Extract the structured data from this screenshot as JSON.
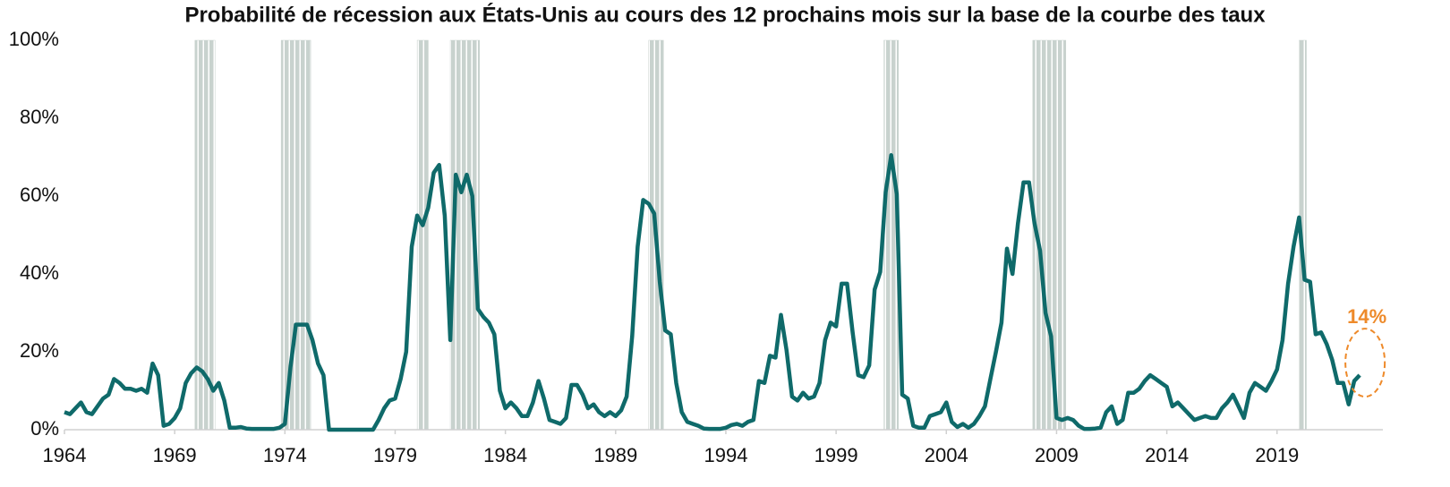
{
  "chart_data": {
    "type": "line",
    "title": "Probabilité de récession aux États-Unis au cours des 12 prochains mois sur la base de la courbe des taux",
    "x": [
      1964,
      1964.25,
      1964.5,
      1964.75,
      1965,
      1965.25,
      1965.5,
      1965.75,
      1966,
      1966.25,
      1966.5,
      1966.75,
      1967,
      1967.25,
      1967.5,
      1967.75,
      1968,
      1968.25,
      1968.5,
      1968.75,
      1969,
      1969.25,
      1969.5,
      1969.75,
      1970,
      1970.25,
      1970.5,
      1970.75,
      1971,
      1971.25,
      1971.5,
      1971.75,
      1972,
      1972.25,
      1972.5,
      1972.75,
      1973,
      1973.25,
      1973.5,
      1973.75,
      1974,
      1974.25,
      1974.5,
      1974.75,
      1975,
      1975.25,
      1975.5,
      1975.75,
      1976,
      1976.25,
      1976.5,
      1976.75,
      1977,
      1977.25,
      1977.5,
      1977.75,
      1978,
      1978.25,
      1978.5,
      1978.75,
      1979,
      1979.25,
      1979.5,
      1979.75,
      1980,
      1980.25,
      1980.5,
      1980.75,
      1981,
      1981.25,
      1981.5,
      1981.75,
      1982,
      1982.25,
      1982.5,
      1982.75,
      1983,
      1983.25,
      1983.5,
      1983.75,
      1984,
      1984.25,
      1984.5,
      1984.75,
      1985,
      1985.25,
      1985.5,
      1985.75,
      1986,
      1986.25,
      1986.5,
      1986.75,
      1987,
      1987.25,
      1987.5,
      1987.75,
      1988,
      1988.25,
      1988.5,
      1988.75,
      1989,
      1989.25,
      1989.5,
      1989.75,
      1990,
      1990.25,
      1990.5,
      1990.75,
      1991,
      1991.25,
      1991.5,
      1991.75,
      1992,
      1992.25,
      1992.5,
      1992.75,
      1993,
      1993.25,
      1993.5,
      1993.75,
      1994,
      1994.25,
      1994.5,
      1994.75,
      1995,
      1995.25,
      1995.5,
      1995.75,
      1996,
      1996.25,
      1996.5,
      1996.75,
      1997,
      1997.25,
      1997.5,
      1997.75,
      1998,
      1998.25,
      1998.5,
      1998.75,
      1999,
      1999.25,
      1999.5,
      1999.75,
      2000,
      2000.25,
      2000.5,
      2000.75,
      2001,
      2001.25,
      2001.5,
      2001.75,
      2002,
      2002.25,
      2002.5,
      2002.75,
      2003,
      2003.25,
      2003.5,
      2003.75,
      2004,
      2004.25,
      2004.5,
      2004.75,
      2005,
      2005.25,
      2005.5,
      2005.75,
      2006,
      2006.25,
      2006.5,
      2006.75,
      2007,
      2007.25,
      2007.5,
      2007.75,
      2008,
      2008.25,
      2008.5,
      2008.75,
      2009,
      2009.25,
      2009.5,
      2009.75,
      2010,
      2010.25,
      2010.5,
      2010.75,
      2011,
      2011.25,
      2011.5,
      2011.75,
      2012,
      2012.25,
      2012.5,
      2012.75,
      2013,
      2013.25,
      2013.5,
      2013.75,
      2014,
      2014.25,
      2014.5,
      2014.75,
      2015,
      2015.25,
      2015.5,
      2015.75,
      2016,
      2016.25,
      2016.5,
      2016.75,
      2017,
      2017.25,
      2017.5,
      2017.75,
      2018,
      2018.25,
      2018.5,
      2018.75,
      2019,
      2019.25,
      2019.5,
      2019.75,
      2020,
      2020.25,
      2020.5,
      2020.75,
      2021,
      2021.25,
      2021.5,
      2021.75,
      2022,
      2022.25,
      2022.5,
      2022.75
    ],
    "series": [
      {
        "color": "#0f6a6a",
        "values": [
          4.5,
          4,
          5.5,
          7,
          4.5,
          4,
          6,
          8,
          9,
          13,
          12,
          10.5,
          10.5,
          10,
          10.5,
          9.5,
          17,
          14,
          1,
          1.5,
          3,
          5.5,
          12,
          14.5,
          16,
          15,
          13,
          10,
          12,
          7.5,
          0.5,
          0.5,
          0.7,
          0.3,
          0.2,
          0.2,
          0.2,
          0.2,
          0.2,
          0.5,
          1.5,
          16,
          27,
          27,
          27,
          23,
          17,
          14,
          0,
          0,
          0,
          0,
          0,
          0,
          0,
          0,
          0,
          2.5,
          5.5,
          7.5,
          8,
          13,
          20,
          47,
          55,
          52.5,
          57,
          66,
          68,
          55,
          23,
          65.5,
          61,
          65.5,
          60,
          31,
          29,
          27.5,
          24.5,
          10,
          5.5,
          7,
          5.5,
          3.5,
          3.5,
          7,
          12.5,
          8,
          2.5,
          2,
          1.5,
          3,
          11.5,
          11.5,
          9,
          5.5,
          6.5,
          4.5,
          3.5,
          4.5,
          3.5,
          5,
          8.5,
          24,
          47,
          59,
          58,
          55.5,
          38,
          25.5,
          24.5,
          12,
          4.5,
          2,
          1.5,
          1,
          0.3,
          0.2,
          0.2,
          0.2,
          0.5,
          1.2,
          1.5,
          1,
          2,
          2.5,
          12.5,
          12,
          19,
          18.5,
          29.5,
          20.5,
          8.5,
          7.5,
          9.5,
          8,
          8.5,
          12,
          23,
          27.5,
          26.5,
          37.5,
          37.5,
          25,
          14,
          13.5,
          16.5,
          36,
          40.5,
          61,
          70.5,
          60.5,
          9,
          8,
          1,
          0.5,
          0.5,
          3.5,
          4,
          4.5,
          7,
          2,
          0.7,
          1.5,
          0.5,
          1.5,
          3.5,
          6,
          13,
          20,
          27.5,
          46.5,
          40,
          53,
          63.5,
          63.5,
          53,
          46,
          30,
          24,
          3,
          2.5,
          3,
          2.5,
          1,
          0.2,
          0.2,
          0.3,
          0.5,
          4.5,
          6,
          1.5,
          2.5,
          9.5,
          9.5,
          10.5,
          12.5,
          14,
          13,
          12,
          11,
          6,
          7,
          5.5,
          4,
          2.5,
          3,
          3.5,
          3,
          3,
          5.5,
          7,
          9,
          6,
          3,
          9.5,
          12,
          11,
          10,
          12.5,
          15.5,
          23,
          37.5,
          47,
          54.5,
          38.5,
          38,
          24.5,
          25,
          22,
          18,
          12,
          12,
          6.5,
          12.5,
          14
        ]
      }
    ],
    "recessions": [
      {
        "start": 1969.92,
        "end": 1970.83
      },
      {
        "start": 1973.83,
        "end": 1975.17
      },
      {
        "start": 1980.0,
        "end": 1980.5
      },
      {
        "start": 1981.5,
        "end": 1982.83
      },
      {
        "start": 1990.5,
        "end": 1991.17
      },
      {
        "start": 2001.17,
        "end": 2001.83
      },
      {
        "start": 2007.92,
        "end": 2009.42
      },
      {
        "start": 2020.0,
        "end": 2020.33
      }
    ],
    "recession_color": "#c8d2ce",
    "annotation": {
      "text": "14%",
      "color": "#ee8a2a"
    },
    "xlim": [
      1964,
      2023.8
    ],
    "xticks": [
      1964,
      1969,
      1974,
      1979,
      1984,
      1989,
      1994,
      1999,
      2004,
      2009,
      2014,
      2019
    ],
    "ylim": [
      0,
      100
    ],
    "yticks": [
      {
        "value": 0,
        "label": "0%"
      },
      {
        "value": 20,
        "label": "20%"
      },
      {
        "value": 40,
        "label": "40%"
      },
      {
        "value": 60,
        "label": "60%"
      },
      {
        "value": 80,
        "label": "80%"
      },
      {
        "value": 100,
        "label": "100%"
      }
    ]
  }
}
